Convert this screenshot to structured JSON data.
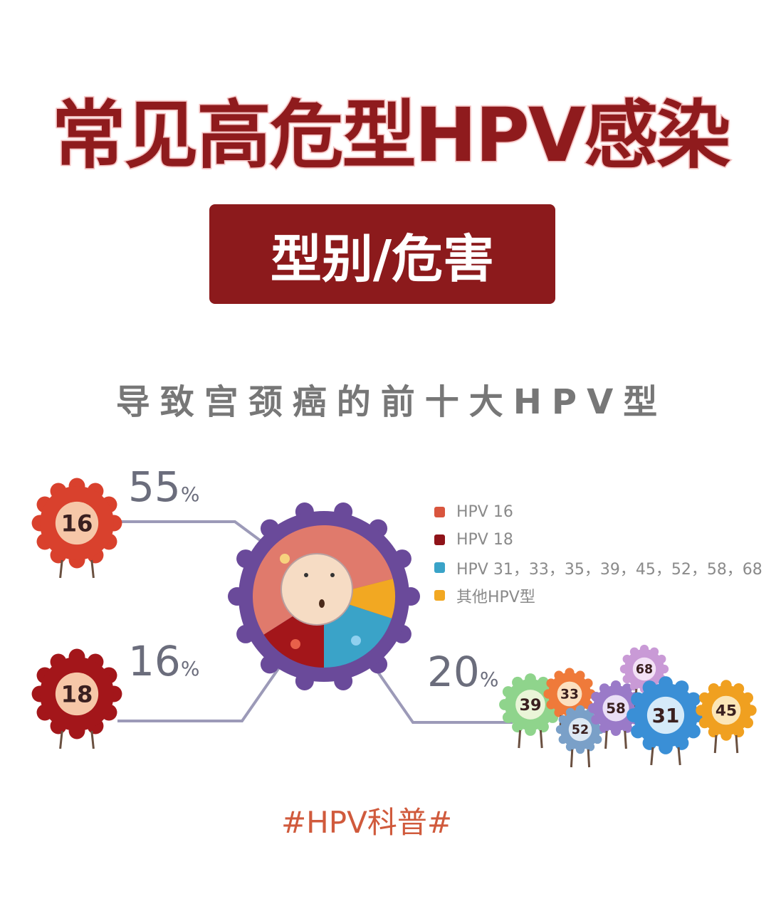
{
  "title": "常见高危型HPV感染",
  "badge": "型别/危害",
  "subtitle": "导致宫颈癌的前十大HPV型",
  "hashtag": "#HPV科普#",
  "chart_data": {
    "type": "pie",
    "title": "导致宫颈癌的前十大HPV型",
    "legend_position": "right",
    "series": [
      {
        "name": "HPV 16",
        "value": 55,
        "label": "55",
        "color": "#e07a6c"
      },
      {
        "name": "HPV 18",
        "value": 16,
        "label": "16",
        "color": "#a3161a"
      },
      {
        "name": "HPV 31，33，35，39，45，52，58，68",
        "value": 20,
        "label": "20",
        "color": "#3aa3c8"
      },
      {
        "name": "其他HPV型",
        "value": 9,
        "color": "#f2a822"
      }
    ],
    "unit": "%"
  },
  "characters": [
    "16",
    "18",
    "39",
    "33",
    "52",
    "58",
    "68",
    "31",
    "45"
  ]
}
